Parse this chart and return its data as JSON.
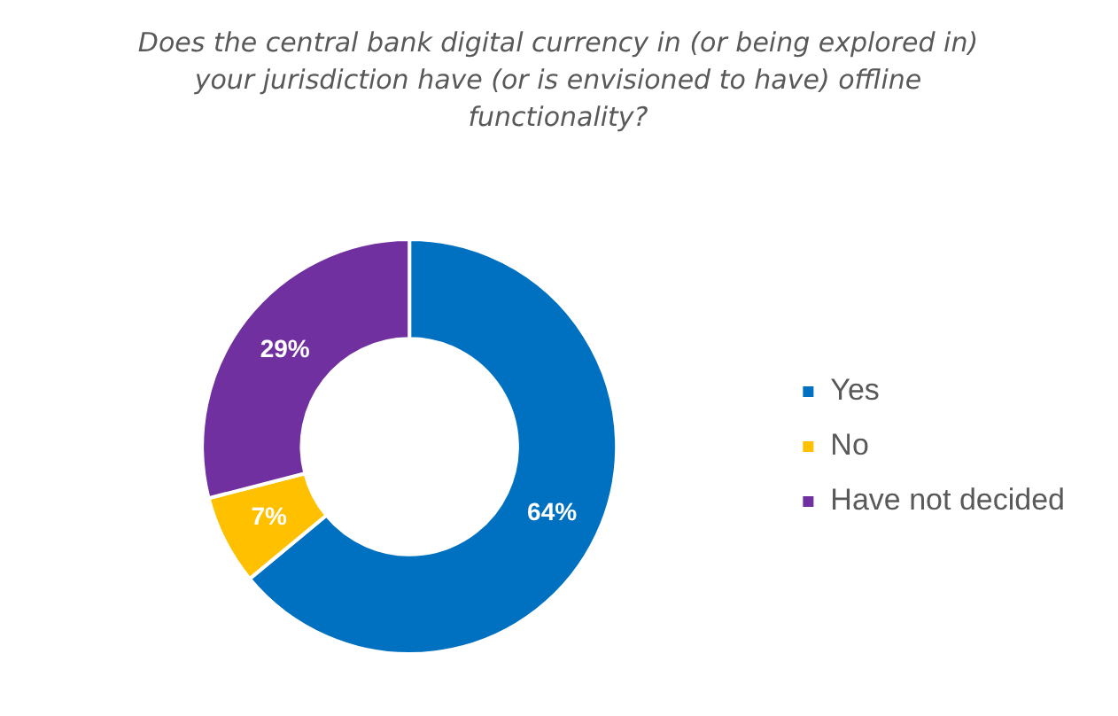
{
  "chart_data": {
    "type": "donut",
    "title": "Does the central bank digital currency in (or being explored in) your jurisdiction have (or is envisioned to have) offline functionality?",
    "categories": [
      "Yes",
      "No",
      "Have not decided"
    ],
    "values": [
      64,
      7,
      29
    ],
    "colors": [
      "#0070c0",
      "#ffc000",
      "#7030a0"
    ],
    "value_labels": [
      "64%",
      "7%",
      "29%"
    ],
    "legend": "right"
  }
}
